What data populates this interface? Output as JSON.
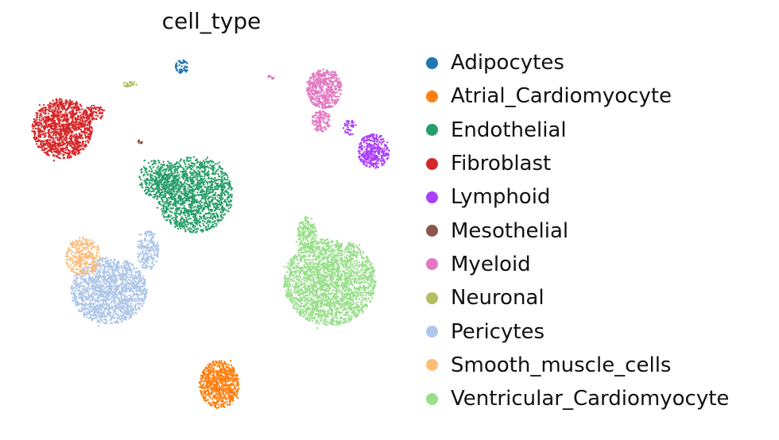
{
  "chart_data": {
    "type": "scatter",
    "title": "cell_type",
    "xlabel": "",
    "ylabel": "",
    "grid": false,
    "axes_visible": false,
    "legend_position": "right",
    "series": [
      {
        "name": "Adipocytes",
        "color": "#1f77b4",
        "clusters": [
          {
            "cx": 229,
            "cy": 84,
            "rx": 8,
            "ry": 9,
            "n": 60
          }
        ]
      },
      {
        "name": "Atrial_Cardiomyocyte",
        "color": "#ff7f0e",
        "clusters": [
          {
            "cx": 276,
            "cy": 484,
            "rx": 25,
            "ry": 30,
            "n": 700
          }
        ]
      },
      {
        "name": "Endothelial",
        "color": "#279e68",
        "clusters": [
          {
            "cx": 245,
            "cy": 245,
            "rx": 48,
            "ry": 48,
            "n": 1400
          },
          {
            "cx": 200,
            "cy": 225,
            "rx": 25,
            "ry": 25,
            "n": 300
          }
        ]
      },
      {
        "name": "Fibroblast",
        "color": "#d62728",
        "clusters": [
          {
            "cx": 78,
            "cy": 162,
            "rx": 38,
            "ry": 38,
            "n": 1200
          },
          {
            "cx": 118,
            "cy": 142,
            "rx": 14,
            "ry": 9,
            "n": 80
          }
        ]
      },
      {
        "name": "Lymphoid",
        "color": "#aa40fc",
        "clusters": [
          {
            "cx": 470,
            "cy": 190,
            "rx": 20,
            "ry": 22,
            "n": 350
          },
          {
            "cx": 440,
            "cy": 160,
            "rx": 8,
            "ry": 10,
            "n": 40
          }
        ]
      },
      {
        "name": "Mesothelial",
        "color": "#8c564b",
        "clusters": [
          {
            "cx": 176,
            "cy": 179,
            "rx": 3,
            "ry": 3,
            "n": 8
          }
        ]
      },
      {
        "name": "Myeloid",
        "color": "#e377c2",
        "clusters": [
          {
            "cx": 408,
            "cy": 112,
            "rx": 22,
            "ry": 25,
            "n": 500
          },
          {
            "cx": 404,
            "cy": 152,
            "rx": 12,
            "ry": 14,
            "n": 120
          },
          {
            "cx": 342,
            "cy": 97,
            "rx": 5,
            "ry": 3,
            "n": 12
          }
        ]
      },
      {
        "name": "Neuronal",
        "color": "#b5bd61",
        "clusters": [
          {
            "cx": 164,
            "cy": 106,
            "rx": 10,
            "ry": 4,
            "n": 30
          }
        ]
      },
      {
        "name": "Pericytes",
        "color": "#aec7e8",
        "clusters": [
          {
            "cx": 137,
            "cy": 366,
            "rx": 48,
            "ry": 42,
            "n": 1500
          },
          {
            "cx": 186,
            "cy": 315,
            "rx": 14,
            "ry": 25,
            "n": 200
          }
        ]
      },
      {
        "name": "Smooth_muscle_cells",
        "color": "#ffbb78",
        "clusters": [
          {
            "cx": 104,
            "cy": 323,
            "rx": 22,
            "ry": 24,
            "n": 300
          }
        ]
      },
      {
        "name": "Ventricular_Cardiomyocyte",
        "color": "#98df8a",
        "clusters": [
          {
            "cx": 415,
            "cy": 355,
            "rx": 58,
            "ry": 55,
            "n": 2200
          },
          {
            "cx": 386,
            "cy": 295,
            "rx": 12,
            "ry": 22,
            "n": 200
          }
        ]
      }
    ]
  }
}
